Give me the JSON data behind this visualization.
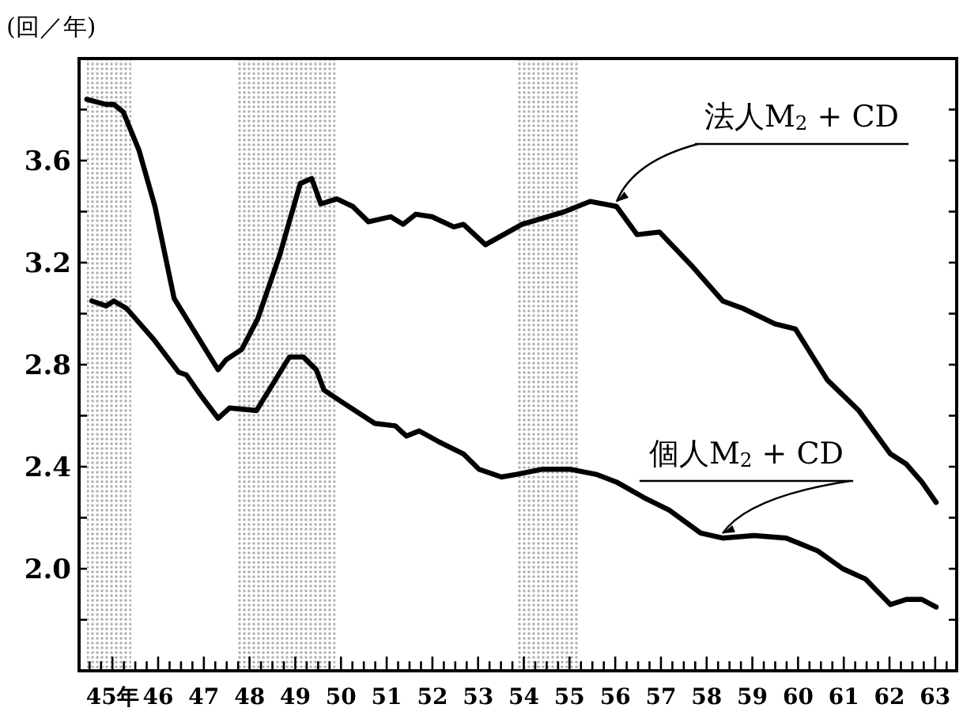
{
  "chart_data": {
    "type": "line",
    "ylabel": "(回／年)",
    "legend": "top right",
    "grid": false,
    "line_style": "solid",
    "marker": "none",
    "xlim": [
      44.27,
      63.47
    ],
    "ylim": [
      1.6,
      4.0
    ],
    "xticks": [
      {
        "value": 44.5,
        "label": null
      },
      {
        "value": 44.75,
        "label": null
      },
      {
        "value": 45,
        "label": "45年"
      },
      {
        "value": 45.25,
        "label": null
      },
      {
        "value": 45.5,
        "label": null
      },
      {
        "value": 45.75,
        "label": null
      },
      {
        "value": 46,
        "label": "46"
      },
      {
        "value": 46.25,
        "label": null
      },
      {
        "value": 46.5,
        "label": null
      },
      {
        "value": 46.75,
        "label": null
      },
      {
        "value": 47,
        "label": "47"
      },
      {
        "value": 47.25,
        "label": null
      },
      {
        "value": 47.5,
        "label": null
      },
      {
        "value": 47.75,
        "label": null
      },
      {
        "value": 48,
        "label": "48"
      },
      {
        "value": 48.25,
        "label": null
      },
      {
        "value": 48.5,
        "label": null
      },
      {
        "value": 48.75,
        "label": null
      },
      {
        "value": 49,
        "label": "49"
      },
      {
        "value": 49.25,
        "label": null
      },
      {
        "value": 49.5,
        "label": null
      },
      {
        "value": 49.75,
        "label": null
      },
      {
        "value": 50,
        "label": "50"
      },
      {
        "value": 50.25,
        "label": null
      },
      {
        "value": 50.5,
        "label": null
      },
      {
        "value": 50.75,
        "label": null
      },
      {
        "value": 51,
        "label": "51"
      },
      {
        "value": 51.25,
        "label": null
      },
      {
        "value": 51.5,
        "label": null
      },
      {
        "value": 51.75,
        "label": null
      },
      {
        "value": 52,
        "label": "52"
      },
      {
        "value": 52.25,
        "label": null
      },
      {
        "value": 52.5,
        "label": null
      },
      {
        "value": 52.75,
        "label": null
      },
      {
        "value": 53,
        "label": "53"
      },
      {
        "value": 53.25,
        "label": null
      },
      {
        "value": 53.5,
        "label": null
      },
      {
        "value": 53.75,
        "label": null
      },
      {
        "value": 54,
        "label": "54"
      },
      {
        "value": 54.25,
        "label": null
      },
      {
        "value": 54.5,
        "label": null
      },
      {
        "value": 54.75,
        "label": null
      },
      {
        "value": 55,
        "label": "55"
      },
      {
        "value": 55.25,
        "label": null
      },
      {
        "value": 55.5,
        "label": null
      },
      {
        "value": 55.75,
        "label": null
      },
      {
        "value": 56,
        "label": "56"
      },
      {
        "value": 56.25,
        "label": null
      },
      {
        "value": 56.5,
        "label": null
      },
      {
        "value": 56.75,
        "label": null
      },
      {
        "value": 57,
        "label": "57"
      },
      {
        "value": 57.25,
        "label": null
      },
      {
        "value": 57.5,
        "label": null
      },
      {
        "value": 57.75,
        "label": null
      },
      {
        "value": 58,
        "label": "58"
      },
      {
        "value": 58.25,
        "label": null
      },
      {
        "value": 58.5,
        "label": null
      },
      {
        "value": 58.75,
        "label": null
      },
      {
        "value": 59,
        "label": "59"
      },
      {
        "value": 59.25,
        "label": null
      },
      {
        "value": 59.5,
        "label": null
      },
      {
        "value": 59.75,
        "label": null
      },
      {
        "value": 60,
        "label": "60"
      },
      {
        "value": 60.25,
        "label": null
      },
      {
        "value": 60.5,
        "label": null
      },
      {
        "value": 60.75,
        "label": null
      },
      {
        "value": 61,
        "label": "61"
      },
      {
        "value": 61.25,
        "label": null
      },
      {
        "value": 61.5,
        "label": null
      },
      {
        "value": 61.75,
        "label": null
      },
      {
        "value": 62,
        "label": "62"
      },
      {
        "value": 62.25,
        "label": null
      },
      {
        "value": 62.5,
        "label": null
      },
      {
        "value": 62.75,
        "label": null
      },
      {
        "value": 63,
        "label": "63"
      },
      {
        "value": 63.25,
        "label": null
      }
    ],
    "yticks": [
      {
        "value": 1.8,
        "label": null
      },
      {
        "value": 2.0,
        "label": "2.0"
      },
      {
        "value": 2.2,
        "label": null
      },
      {
        "value": 2.4,
        "label": "2.4"
      },
      {
        "value": 2.6,
        "label": null
      },
      {
        "value": 2.8,
        "label": "2.8"
      },
      {
        "value": 3.0,
        "label": null
      },
      {
        "value": 3.2,
        "label": "3.2"
      },
      {
        "value": 3.4,
        "label": null
      },
      {
        "value": 3.6,
        "label": "3.6"
      },
      {
        "value": 3.8,
        "label": null
      }
    ],
    "bands": [
      {
        "axis": "x",
        "from": 44.44,
        "to": 45.41,
        "color": "#b0b0b0"
      },
      {
        "axis": "x",
        "from": 47.73,
        "to": 49.88,
        "color": "#b0b0b0"
      },
      {
        "axis": "x",
        "from": 53.85,
        "to": 55.2,
        "color": "#b0b0b0"
      }
    ],
    "series": [
      {
        "name": "法人M$_{2}$ + CD",
        "color": "#000000",
        "x": [
          44.44,
          44.86,
          45.03,
          45.24,
          45.58,
          45.93,
          46.35,
          46.69,
          47.31,
          47.49,
          47.83,
          48.18,
          48.66,
          49.11,
          49.36,
          49.56,
          49.91,
          50.26,
          50.6,
          51.09,
          51.36,
          51.64,
          51.99,
          52.47,
          52.68,
          53.16,
          53.96,
          54.89,
          55.45,
          56.03,
          56.48,
          56.97,
          57.66,
          58.35,
          58.8,
          59.49,
          59.94,
          60.64,
          61.33,
          62.02,
          62.37,
          62.71,
          63.02
        ],
        "values": [
          3.84,
          3.82,
          3.82,
          3.79,
          3.64,
          3.42,
          3.06,
          2.96,
          2.78,
          2.82,
          2.86,
          2.98,
          3.23,
          3.51,
          3.53,
          3.43,
          3.45,
          3.42,
          3.36,
          3.38,
          3.35,
          3.39,
          3.38,
          3.34,
          3.35,
          3.27,
          3.35,
          3.4,
          3.44,
          3.42,
          3.31,
          3.32,
          3.19,
          3.05,
          3.02,
          2.96,
          2.94,
          2.74,
          2.62,
          2.45,
          2.41,
          2.34,
          2.26
        ]
      },
      {
        "name": "個人M$_{2}$ + CD",
        "color": "#000000",
        "x": [
          44.55,
          44.86,
          45.03,
          45.31,
          45.9,
          46.45,
          46.62,
          46.93,
          47.31,
          47.56,
          48.15,
          48.53,
          48.87,
          49.18,
          49.46,
          49.63,
          50.05,
          50.74,
          51.19,
          51.43,
          51.71,
          52.12,
          52.68,
          53.02,
          53.51,
          53.85,
          54.41,
          55.0,
          55.58,
          56.03,
          56.62,
          57.18,
          57.87,
          58.35,
          59.04,
          59.74,
          60.43,
          60.98,
          61.47,
          62.02,
          62.37,
          62.71,
          63.02
        ],
        "values": [
          3.05,
          3.03,
          3.05,
          3.02,
          2.9,
          2.77,
          2.76,
          2.68,
          2.59,
          2.63,
          2.62,
          2.73,
          2.83,
          2.83,
          2.78,
          2.7,
          2.65,
          2.57,
          2.56,
          2.52,
          2.54,
          2.5,
          2.45,
          2.39,
          2.36,
          2.37,
          2.39,
          2.39,
          2.37,
          2.34,
          2.28,
          2.23,
          2.14,
          2.12,
          2.13,
          2.12,
          2.07,
          2.0,
          1.96,
          1.86,
          1.88,
          1.88,
          1.85
        ]
      }
    ]
  }
}
